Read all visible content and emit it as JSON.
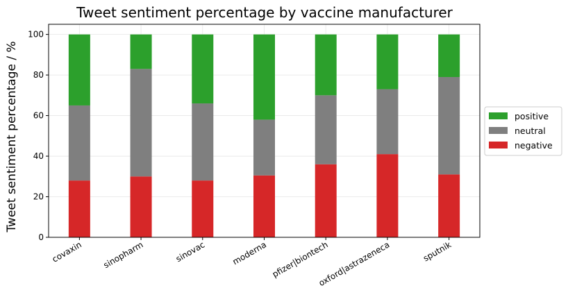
{
  "chart_data": {
    "type": "bar",
    "stacked": true,
    "title": "Tweet sentiment percentage by vaccine manufacturer",
    "xlabel": "",
    "ylabel": "Tweet sentiment percentage / %",
    "ylim": [
      0,
      105
    ],
    "yticks": [
      0,
      20,
      40,
      60,
      80,
      100
    ],
    "grid": true,
    "legend_position": "right",
    "categories": [
      "covaxin",
      "sinopharm",
      "sinovac",
      "moderna",
      "pfizer|biontech",
      "oxford|astrazeneca",
      "sputnik"
    ],
    "series": [
      {
        "name": "negative",
        "color": "#d62728",
        "values": [
          28,
          30,
          28,
          30.5,
          36,
          41,
          31
        ]
      },
      {
        "name": "neutral",
        "color": "#7f7f7f",
        "values": [
          37,
          53,
          38,
          27.5,
          34,
          32,
          48
        ]
      },
      {
        "name": "positive",
        "color": "#2ca02c",
        "values": [
          35,
          17,
          34,
          42,
          30,
          27,
          21
        ]
      }
    ],
    "legend_order": [
      "positive",
      "neutral",
      "negative"
    ]
  }
}
